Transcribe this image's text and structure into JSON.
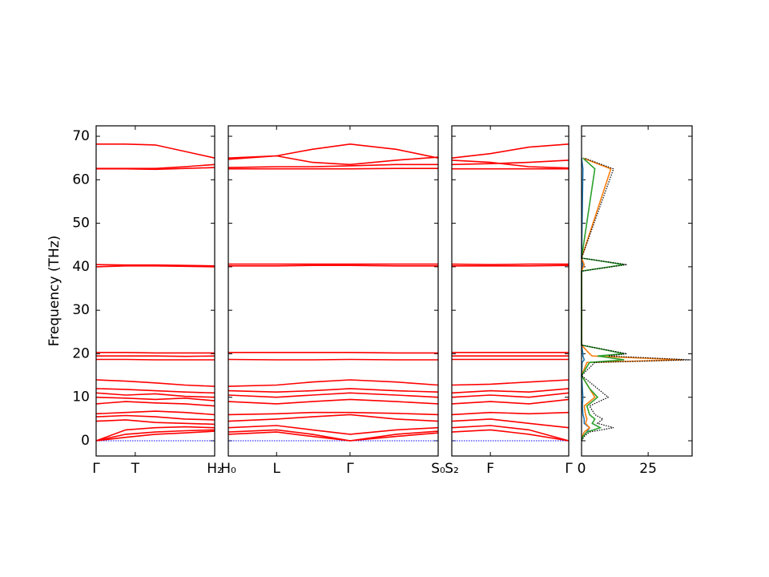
{
  "chart_data": [
    {
      "type": "line",
      "ylabel": "Frequency (THz)",
      "color": "#ff0000",
      "ylim": [
        -3.5,
        72.4
      ],
      "yticks": [
        0,
        10,
        20,
        30,
        40,
        50,
        60,
        70
      ],
      "xlim": [
        0,
        1
      ],
      "xticks": [
        {
          "value": 0,
          "label": "Γ"
        },
        {
          "value": 0.33,
          "label": "T"
        },
        {
          "value": 1,
          "label": "H₂"
        }
      ],
      "hline": {
        "value": 0,
        "color": "#0000ff"
      },
      "x": [
        0,
        0.25,
        0.5,
        0.75,
        1
      ],
      "series": [
        {
          "values": [
            68.2,
            68.2,
            68,
            66.5,
            65
          ]
        },
        {
          "values": [
            62.6,
            62.6,
            62.6,
            63,
            63.5
          ]
        },
        {
          "values": [
            62.5,
            62.5,
            62.4,
            62.6,
            62.8
          ]
        },
        {
          "values": [
            40.5,
            40.4,
            40.4,
            40.3,
            40.2
          ]
        },
        {
          "values": [
            40,
            40.2,
            40.2,
            40.1,
            40
          ]
        },
        {
          "values": [
            20.3,
            20.3,
            20.2,
            20.2,
            20.2
          ]
        },
        {
          "values": [
            19.5,
            19.5,
            19.5,
            19.4,
            19.5
          ]
        },
        {
          "values": [
            18.7,
            18.7,
            18.6,
            18.6,
            18.6
          ]
        },
        {
          "values": [
            14,
            13.7,
            13.3,
            12.8,
            12.5
          ]
        },
        {
          "values": [
            12,
            11.8,
            11.5,
            11.2,
            11
          ]
        },
        {
          "values": [
            11,
            10.5,
            10.8,
            10.2,
            10
          ]
        },
        {
          "values": [
            10,
            9.8,
            9.5,
            9.8,
            9.2
          ]
        },
        {
          "values": [
            8.5,
            9,
            8.7,
            8.5,
            8
          ]
        },
        {
          "values": [
            6.2,
            6.5,
            6.8,
            6.5,
            6
          ]
        },
        {
          "values": [
            5.5,
            5.8,
            5.5,
            5,
            4.8
          ]
        },
        {
          "values": [
            4.5,
            4.8,
            4.2,
            4,
            3.8
          ]
        },
        {
          "values": [
            0,
            2.5,
            3,
            3.2,
            3
          ]
        },
        {
          "values": [
            0,
            1.5,
            2,
            2.3,
            2.5
          ]
        },
        {
          "values": [
            0,
            0.8,
            1.5,
            1.8,
            2.2
          ]
        }
      ]
    },
    {
      "type": "line",
      "color": "#ff0000",
      "ylim": [
        -3.5,
        72.4
      ],
      "xlim": [
        0,
        1
      ],
      "xticks": [
        {
          "value": 0,
          "label": "H₀"
        },
        {
          "value": 0.23,
          "label": "L"
        },
        {
          "value": 0.58,
          "label": "Γ"
        },
        {
          "value": 1,
          "label": "S₀"
        }
      ],
      "hline": {
        "value": 0,
        "color": "#0000ff"
      },
      "x": [
        0,
        0.23,
        0.4,
        0.58,
        0.8,
        1
      ],
      "series": [
        {
          "values": [
            65,
            65.5,
            67,
            68.2,
            67,
            65
          ]
        },
        {
          "values": [
            64.7,
            65.5,
            64,
            63.5,
            64.5,
            65.2
          ]
        },
        {
          "values": [
            62.8,
            63,
            63,
            63.2,
            63.5,
            63.5
          ]
        },
        {
          "values": [
            62.5,
            62.5,
            62.5,
            62.5,
            62.6,
            62.6
          ]
        },
        {
          "values": [
            40.6,
            40.6,
            40.6,
            40.6,
            40.6,
            40.6
          ]
        },
        {
          "values": [
            40.2,
            40.2,
            40.3,
            40.3,
            40.2,
            40.2
          ]
        },
        {
          "values": [
            20.3,
            20.3,
            20.3,
            20.3,
            20.2,
            20.2
          ]
        },
        {
          "values": [
            18.7,
            18.6,
            18.6,
            18.7,
            18.6,
            18.6
          ]
        },
        {
          "values": [
            12.5,
            12.8,
            13.5,
            14,
            13.5,
            12.8
          ]
        },
        {
          "values": [
            11.5,
            11.2,
            11.5,
            12,
            11.5,
            11.2
          ]
        },
        {
          "values": [
            10.5,
            10,
            10.5,
            11,
            10.5,
            10
          ]
        },
        {
          "values": [
            9,
            8.5,
            9,
            9.5,
            9,
            8.5
          ]
        },
        {
          "values": [
            6,
            6.2,
            6.5,
            6.5,
            6.3,
            6
          ]
        },
        {
          "values": [
            4.5,
            5,
            5.5,
            6,
            5,
            4.5
          ]
        },
        {
          "values": [
            3,
            3.5,
            2.5,
            1.5,
            2.5,
            3
          ]
        },
        {
          "values": [
            2,
            2.5,
            1.5,
            0,
            1.5,
            2.2
          ]
        },
        {
          "values": [
            1.5,
            2,
            1,
            0,
            1,
            1.8
          ]
        }
      ]
    },
    {
      "type": "line",
      "color": "#ff0000",
      "ylim": [
        -3.5,
        72.4
      ],
      "xlim": [
        0,
        1
      ],
      "xticks": [
        {
          "value": 0,
          "label": "S₂"
        },
        {
          "value": 0.33,
          "label": "F"
        },
        {
          "value": 1,
          "label": "Γ"
        }
      ],
      "hline": {
        "value": 0,
        "color": "#0000ff"
      },
      "x": [
        0,
        0.33,
        0.66,
        1
      ],
      "series": [
        {
          "values": [
            65,
            66,
            67.5,
            68.2
          ]
        },
        {
          "values": [
            64.5,
            64,
            63,
            62.7
          ]
        },
        {
          "values": [
            63.5,
            63.7,
            64,
            64.5
          ]
        },
        {
          "values": [
            62.5,
            62.5,
            62.5,
            62.5
          ]
        },
        {
          "values": [
            40.6,
            40.5,
            40.6,
            40.6
          ]
        },
        {
          "values": [
            40.2,
            40.2,
            40.2,
            40.3
          ]
        },
        {
          "values": [
            20.3,
            20.3,
            20.3,
            20.3
          ]
        },
        {
          "values": [
            19.5,
            19.5,
            19.5,
            19.5
          ]
        },
        {
          "values": [
            18.7,
            18.7,
            18.7,
            18.7
          ]
        },
        {
          "values": [
            12.8,
            13,
            13.5,
            14
          ]
        },
        {
          "values": [
            11,
            11.5,
            11.2,
            12
          ]
        },
        {
          "values": [
            10,
            10.5,
            10,
            11
          ]
        },
        {
          "values": [
            8.5,
            9,
            8.5,
            9.5
          ]
        },
        {
          "values": [
            6,
            6.5,
            6.2,
            6.5
          ]
        },
        {
          "values": [
            4.5,
            5,
            4,
            3
          ]
        },
        {
          "values": [
            3,
            3.5,
            2.5,
            0
          ]
        },
        {
          "values": [
            2,
            2.5,
            1.5,
            0
          ]
        }
      ]
    },
    {
      "type": "dos",
      "ylim": [
        -3.5,
        72.4
      ],
      "xlim": [
        0,
        41.5
      ],
      "xticks": [
        0,
        25
      ],
      "y": [
        0,
        1,
        2,
        3,
        4,
        5,
        6,
        8,
        10,
        12,
        13,
        15,
        18,
        18.6,
        19.5,
        20,
        22,
        39,
        40.5,
        42,
        62.5,
        65
      ],
      "series": [
        {
          "color": "#1f77b4",
          "values": [
            0,
            0.5,
            2,
            3,
            1,
            1,
            0.5,
            0.3,
            0.5,
            0.3,
            0.2,
            0,
            0.2,
            1,
            0.5,
            0.5,
            0,
            0,
            0.5,
            0,
            0.5,
            0
          ]
        },
        {
          "color": "#ff7f0e",
          "values": [
            0,
            0.3,
            1,
            3,
            1.5,
            2,
            1.5,
            1,
            5,
            3,
            2,
            0,
            2,
            38,
            4,
            3,
            0,
            0,
            1,
            0,
            11,
            0.5
          ]
        },
        {
          "color": "#2ca02c",
          "values": [
            0,
            0.5,
            2,
            7,
            4,
            5,
            3,
            2,
            6,
            3,
            2,
            0,
            3,
            16,
            6,
            16,
            0,
            0,
            16,
            0,
            5,
            0.5
          ]
        },
        {
          "color": "#000000",
          "dotted": true,
          "values": [
            0,
            1,
            3,
            12,
            6,
            8,
            5,
            3,
            10,
            6,
            4,
            0,
            5,
            41,
            10,
            17,
            0,
            0,
            17,
            0,
            12,
            1
          ]
        }
      ]
    }
  ]
}
